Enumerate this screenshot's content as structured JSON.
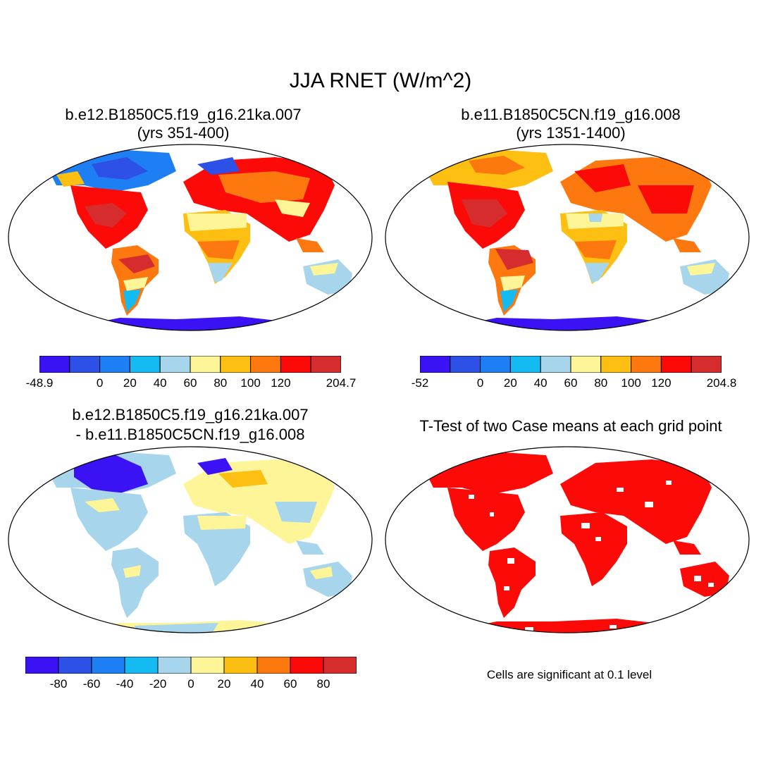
{
  "title": "JJA RNET (W/m^2)",
  "palette": [
    "#3b12f4",
    "#2d50e6",
    "#1e7ff5",
    "#14baf2",
    "#a7d5ec",
    "#fdf598",
    "#fdbf11",
    "#fd780f",
    "#fc0a07",
    "#d62c2d"
  ],
  "diff_palette_note": "same 10-colour scale",
  "panels": [
    {
      "name": "case1",
      "title_line1": "b.e12.B1850C5.f19_g16.21ka.007",
      "title_line2": "(yrs 351-400)",
      "colorbar_labels": [
        "-48.9",
        "",
        "0",
        "20",
        "40",
        "60",
        "80",
        "100",
        "120",
        "",
        "204.7"
      ]
    },
    {
      "name": "case2",
      "title_line1": "b.e11.B1850C5CN.f19_g16.008",
      "title_line2": "(yrs 1351-1400)",
      "colorbar_labels": [
        "-52",
        "",
        "0",
        "20",
        "40",
        "60",
        "80",
        "100",
        "120",
        "",
        "204.8"
      ]
    },
    {
      "name": "difference",
      "title_line1": "b.e12.B1850C5.f19_g16.21ka.007",
      "title_line2": "- b.e11.B1850C5CN.f19_g16.008",
      "colorbar_labels": [
        "",
        "-80",
        "-60",
        "-40",
        "-20",
        "0",
        "20",
        "40",
        "60",
        "80",
        ""
      ]
    },
    {
      "name": "ttest",
      "title_line1": "T-Test of two Case means at each grid point",
      "title_line2": "",
      "significance_color": "#fc0a07",
      "note": "Cells are significant at 0.1 level"
    }
  ]
}
